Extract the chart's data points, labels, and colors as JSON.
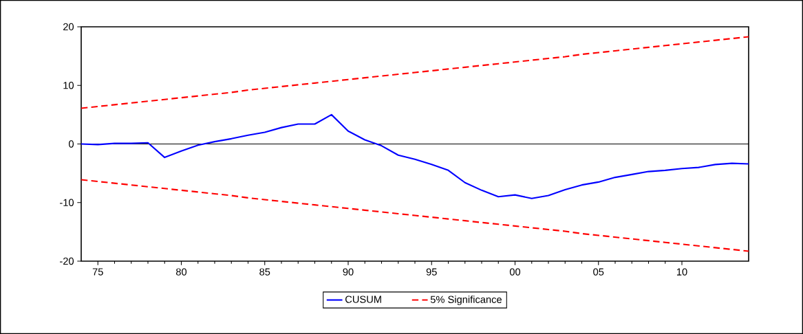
{
  "chart_data": {
    "type": "line",
    "x": [
      1974,
      1975,
      1976,
      1977,
      1978,
      1979,
      1980,
      1981,
      1982,
      1983,
      1984,
      1985,
      1986,
      1987,
      1988,
      1989,
      1990,
      1991,
      1992,
      1993,
      1994,
      1995,
      1996,
      1997,
      1998,
      1999,
      2000,
      2001,
      2002,
      2003,
      2004,
      2005,
      2006,
      2007,
      2008,
      2009,
      2010,
      2011,
      2012,
      2013,
      2014
    ],
    "series": [
      {
        "name": "CUSUM",
        "color": "#0000ff",
        "line_style": "solid",
        "values": [
          0.0,
          -0.1,
          0.1,
          0.1,
          0.2,
          -2.3,
          -1.2,
          -0.2,
          0.4,
          0.9,
          1.5,
          2.0,
          2.8,
          3.4,
          3.4,
          5.0,
          2.2,
          0.7,
          -0.3,
          -1.9,
          -2.6,
          -3.5,
          -4.5,
          -6.6,
          -7.9,
          -9.0,
          -8.7,
          -9.3,
          -8.8,
          -7.8,
          -7.0,
          -6.5,
          -5.7,
          -5.2,
          -4.7,
          -4.5,
          -4.2,
          -4.0,
          -3.5,
          -3.3,
          -3.4
        ]
      },
      {
        "name": "5% Significance",
        "color": "#ff0000",
        "line_style": "dashed",
        "values": [
          6.1,
          6.4,
          6.7,
          7.0,
          7.3,
          7.6,
          7.9,
          8.2,
          8.5,
          8.8,
          9.2,
          9.5,
          9.8,
          10.1,
          10.4,
          10.7,
          11.0,
          11.3,
          11.6,
          11.9,
          12.2,
          12.5,
          12.8,
          13.1,
          13.4,
          13.7,
          14.0,
          14.3,
          14.6,
          14.9,
          15.3,
          15.6,
          15.9,
          16.2,
          16.5,
          16.8,
          17.1,
          17.4,
          17.7,
          18.0,
          18.3
        ]
      },
      {
        "color": "#ff0000",
        "line_style": "dashed",
        "values": [
          -6.1,
          -6.4,
          -6.7,
          -7.0,
          -7.3,
          -7.6,
          -7.9,
          -8.2,
          -8.5,
          -8.8,
          -9.2,
          -9.5,
          -9.8,
          -10.1,
          -10.4,
          -10.7,
          -11.0,
          -11.3,
          -11.6,
          -11.9,
          -12.2,
          -12.5,
          -12.8,
          -13.1,
          -13.4,
          -13.7,
          -14.0,
          -14.3,
          -14.6,
          -14.9,
          -15.3,
          -15.6,
          -15.9,
          -16.2,
          -16.5,
          -16.8,
          -17.1,
          -17.4,
          -17.7,
          -18.0,
          -18.3
        ]
      }
    ],
    "xlim": [
      1974,
      2014
    ],
    "xticks": [
      {
        "value": 1975,
        "label": "75"
      },
      {
        "value": 1980,
        "label": "80"
      },
      {
        "value": 1985,
        "label": "85"
      },
      {
        "value": 1990,
        "label": "90"
      },
      {
        "value": 1995,
        "label": "95"
      },
      {
        "value": 2000,
        "label": "00"
      },
      {
        "value": 2005,
        "label": "05"
      },
      {
        "value": 2010,
        "label": "10"
      }
    ],
    "ylim": [
      -20,
      20
    ],
    "yticks": [
      -20,
      -10,
      0,
      10,
      20
    ],
    "ref_lines": [
      {
        "axis": "y",
        "value": 0,
        "color": "#000000"
      }
    ],
    "grid": false,
    "legend": "bottom"
  }
}
